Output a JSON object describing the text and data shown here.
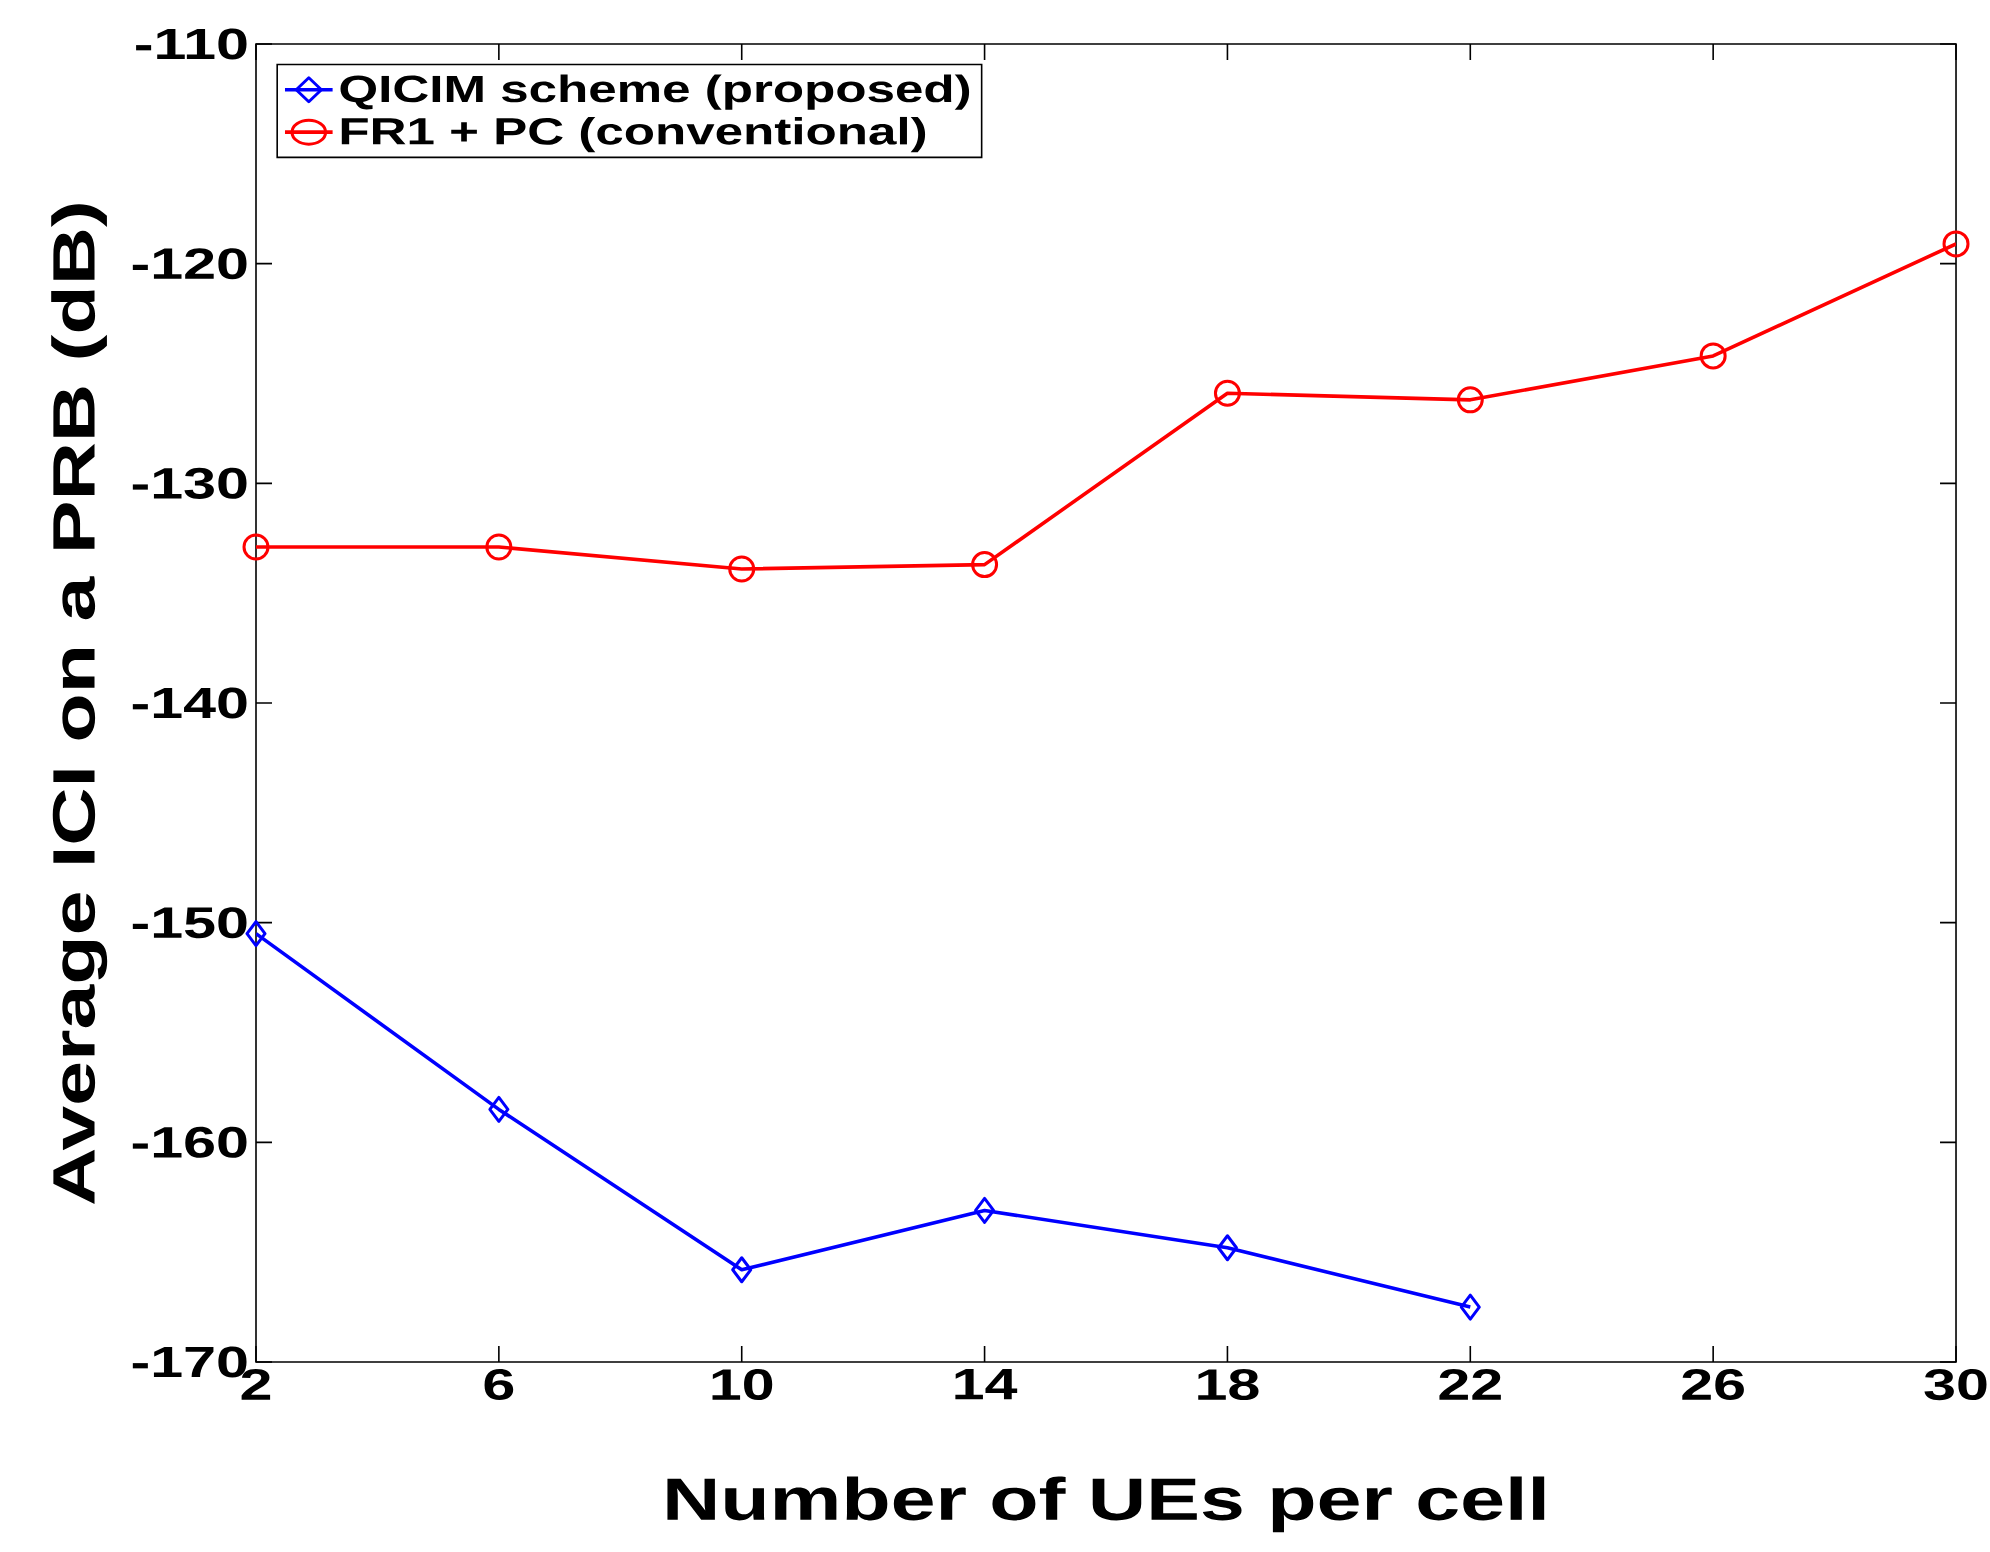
{
  "chart_data": {
    "type": "line",
    "xlabel": "Number of UEs per cell",
    "ylabel": "Average ICI on a PRB (dB)",
    "xlim": [
      2,
      30
    ],
    "xticks": [
      2,
      6,
      10,
      14,
      18,
      22,
      26,
      30
    ],
    "ylim": [
      -170,
      -110
    ],
    "yticks": [
      -170,
      -160,
      -150,
      -140,
      -130,
      -120,
      -110
    ],
    "legend": "top left",
    "grid": false,
    "line_style": "solid",
    "series": [
      {
        "name": "QICIM scheme (proposed)",
        "color": "#0000ff",
        "marker": "diamond",
        "x": [
          2,
          6,
          10,
          14,
          18,
          22
        ],
        "values": [
          -150.5,
          -158.5,
          -165.8,
          -163.1,
          -164.8,
          -167.5
        ]
      },
      {
        "name": "FR1 + PC (conventional)",
        "color": "#ff0000",
        "marker": "circle",
        "x": [
          2,
          6,
          10,
          14,
          18,
          22,
          26,
          30
        ],
        "values": [
          -132.9,
          -132.9,
          -133.9,
          -133.7,
          -125.9,
          -126.2,
          -124.2,
          -119.1
        ]
      }
    ]
  }
}
